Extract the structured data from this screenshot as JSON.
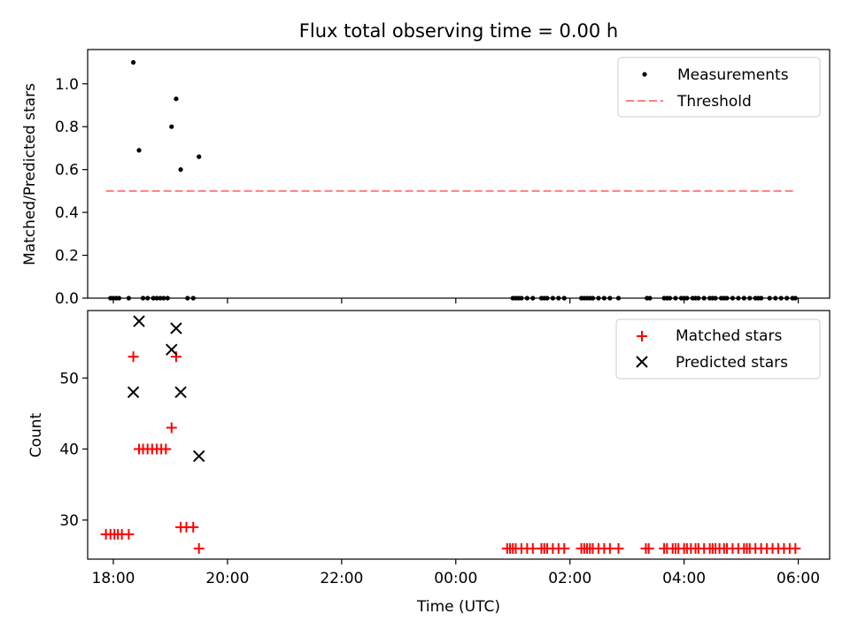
{
  "title": "Flux total observing time = 0.00 h",
  "colors": {
    "measurements": "#000000",
    "threshold": "#ff7f7f",
    "matched": "#ff0000",
    "predicted": "#000000"
  },
  "chart_data": [
    {
      "type": "scatter",
      "ylabel": "Matched/Predicted stars",
      "xlabel": "",
      "xlim": [
        17.55,
        30.55
      ],
      "ylim": [
        0,
        1.16
      ],
      "yticks": [
        0.0,
        0.2,
        0.4,
        0.6,
        0.8,
        1.0
      ],
      "ytick_labels": [
        "0.0",
        "0.2",
        "0.4",
        "0.6",
        "0.8",
        "1.0"
      ],
      "xticks": [
        18,
        20,
        22,
        24,
        26,
        28,
        30
      ],
      "legend": {
        "position": "top-right",
        "entries": [
          "Measurements",
          "Threshold"
        ]
      },
      "series": [
        {
          "name": "Measurements",
          "marker": "dot",
          "x": [
            17.95,
            18.0,
            18.05,
            18.1,
            18.27,
            18.35,
            18.45,
            18.52,
            18.6,
            18.7,
            18.76,
            18.82,
            18.88,
            18.95,
            19.02,
            19.1,
            19.18,
            19.3,
            19.4,
            19.5,
            25.0,
            25.05,
            25.1,
            25.15,
            25.25,
            25.35,
            25.5,
            25.55,
            25.6,
            25.7,
            25.8,
            25.9,
            26.2,
            26.25,
            26.3,
            26.35,
            26.4,
            26.5,
            26.6,
            26.7,
            26.85,
            27.35,
            27.4,
            27.65,
            27.7,
            27.75,
            27.85,
            27.95,
            28.0,
            28.05,
            28.15,
            28.2,
            28.25,
            28.35,
            28.45,
            28.5,
            28.55,
            28.65,
            28.7,
            28.75,
            28.85,
            28.95,
            29.05,
            29.15,
            29.25,
            29.3,
            29.35,
            29.5,
            29.6,
            29.7,
            29.8,
            29.9,
            29.95
          ],
          "y": [
            0,
            0,
            0,
            0,
            0,
            1.1,
            0.69,
            0,
            0,
            0,
            0,
            0,
            0,
            0,
            0.8,
            0.93,
            0.6,
            0,
            0,
            0.66,
            0,
            0,
            0,
            0,
            0,
            0,
            0,
            0,
            0,
            0,
            0,
            0,
            0,
            0,
            0,
            0,
            0,
            0,
            0,
            0,
            0,
            0,
            0,
            0,
            0,
            0,
            0,
            0,
            0,
            0,
            0,
            0,
            0,
            0,
            0,
            0,
            0,
            0,
            0,
            0,
            0,
            0,
            0,
            0,
            0,
            0,
            0,
            0,
            0,
            0,
            0,
            0,
            0
          ]
        },
        {
          "name": "Threshold",
          "marker": "dashed-line",
          "x": [
            17.87,
            29.95
          ],
          "y": [
            0.5,
            0.5
          ]
        }
      ]
    },
    {
      "type": "scatter",
      "xlabel": "Time (UTC)",
      "ylabel": "Count",
      "xlim": [
        17.55,
        30.55
      ],
      "ylim": [
        24.5,
        59.5
      ],
      "yticks": [
        30,
        40,
        50
      ],
      "ytick_labels": [
        "30",
        "40",
        "50"
      ],
      "xticks": [
        18,
        20,
        22,
        24,
        26,
        28,
        30
      ],
      "xtick_labels": [
        "18:00",
        "20:00",
        "22:00",
        "00:00",
        "02:00",
        "04:00",
        "06:00"
      ],
      "legend": {
        "position": "top-right",
        "entries": [
          "Matched stars",
          "Predicted stars"
        ]
      },
      "series": [
        {
          "name": "Matched stars",
          "marker": "plus",
          "x": [
            17.87,
            17.95,
            18.02,
            18.08,
            18.15,
            18.27,
            18.35,
            18.45,
            18.52,
            18.6,
            18.68,
            18.76,
            18.84,
            18.92,
            19.02,
            19.1,
            19.18,
            19.28,
            19.4,
            19.5,
            24.9,
            24.95,
            25.0,
            25.05,
            25.15,
            25.25,
            25.35,
            25.5,
            25.55,
            25.6,
            25.7,
            25.8,
            25.9,
            26.2,
            26.25,
            26.3,
            26.35,
            26.4,
            26.5,
            26.6,
            26.7,
            26.85,
            27.33,
            27.38,
            27.65,
            27.7,
            27.8,
            27.85,
            27.9,
            28.0,
            28.05,
            28.12,
            28.2,
            28.25,
            28.35,
            28.45,
            28.5,
            28.55,
            28.62,
            28.7,
            28.75,
            28.85,
            28.95,
            29.05,
            29.1,
            29.15,
            29.25,
            29.35,
            29.45,
            29.55,
            29.65,
            29.75,
            29.85,
            29.95
          ],
          "y": [
            28,
            28,
            28,
            28,
            28,
            28,
            53,
            40,
            40,
            40,
            40,
            40,
            40,
            40,
            43,
            53,
            29,
            29,
            29,
            26,
            26,
            26,
            26,
            26,
            26,
            26,
            26,
            26,
            26,
            26,
            26,
            26,
            26,
            26,
            26,
            26,
            26,
            26,
            26,
            26,
            26,
            26,
            26,
            26,
            26,
            26,
            26,
            26,
            26,
            26,
            26,
            26,
            26,
            26,
            26,
            26,
            26,
            26,
            26,
            26,
            26,
            26,
            26,
            26,
            26,
            26,
            26,
            26,
            26,
            26,
            26,
            26,
            26,
            26
          ]
        },
        {
          "name": "Predicted stars",
          "marker": "x",
          "x": [
            18.35,
            18.45,
            19.02,
            19.1,
            19.18,
            19.5
          ],
          "y": [
            48,
            58,
            54,
            57,
            48,
            39
          ]
        }
      ]
    }
  ]
}
